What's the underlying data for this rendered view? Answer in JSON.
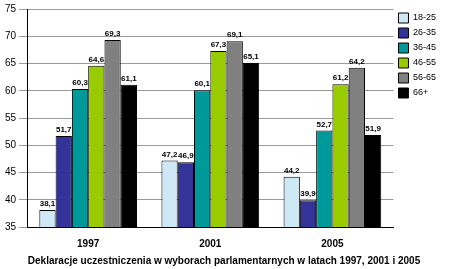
{
  "chart_data": {
    "type": "bar",
    "title": "Deklaracje uczestniczenia w wyborach parlamentarnych w latach 1997, 2001 i 2005",
    "categories": [
      "1997",
      "2001",
      "2005"
    ],
    "series": [
      {
        "name": "18-25",
        "color": "#cfe8f6",
        "values": [
          38.1,
          47.2,
          44.2
        ],
        "value_labels": [
          "38,1",
          "47,2",
          "44,2"
        ]
      },
      {
        "name": "26-35",
        "color": "#333399",
        "values": [
          51.7,
          46.9,
          39.9
        ],
        "value_labels": [
          "51,7",
          "46,9",
          "39,9"
        ]
      },
      {
        "name": "36-45",
        "color": "#009999",
        "values": [
          60.3,
          60.1,
          52.7
        ],
        "value_labels": [
          "60,3",
          "60,1",
          "52,7"
        ]
      },
      {
        "name": "46-55",
        "color": "#99cc00",
        "values": [
          64.6,
          67.3,
          61.2
        ],
        "value_labels": [
          "64,6",
          "67,3",
          "61,2"
        ]
      },
      {
        "name": "56-65",
        "color": "#808080",
        "values": [
          69.3,
          69.1,
          64.2
        ],
        "value_labels": [
          "69,3",
          "69,1",
          "64,2"
        ]
      },
      {
        "name": "66+",
        "color": "#000000",
        "values": [
          61.1,
          65.1,
          51.9
        ],
        "value_labels": [
          "61,1",
          "65,1",
          "51,9"
        ]
      }
    ],
    "ylim": [
      35,
      75
    ],
    "yticks": [
      35,
      40,
      45,
      50,
      55,
      60,
      65,
      70,
      75
    ],
    "grid": true,
    "legend": "right",
    "data_labels": true
  }
}
